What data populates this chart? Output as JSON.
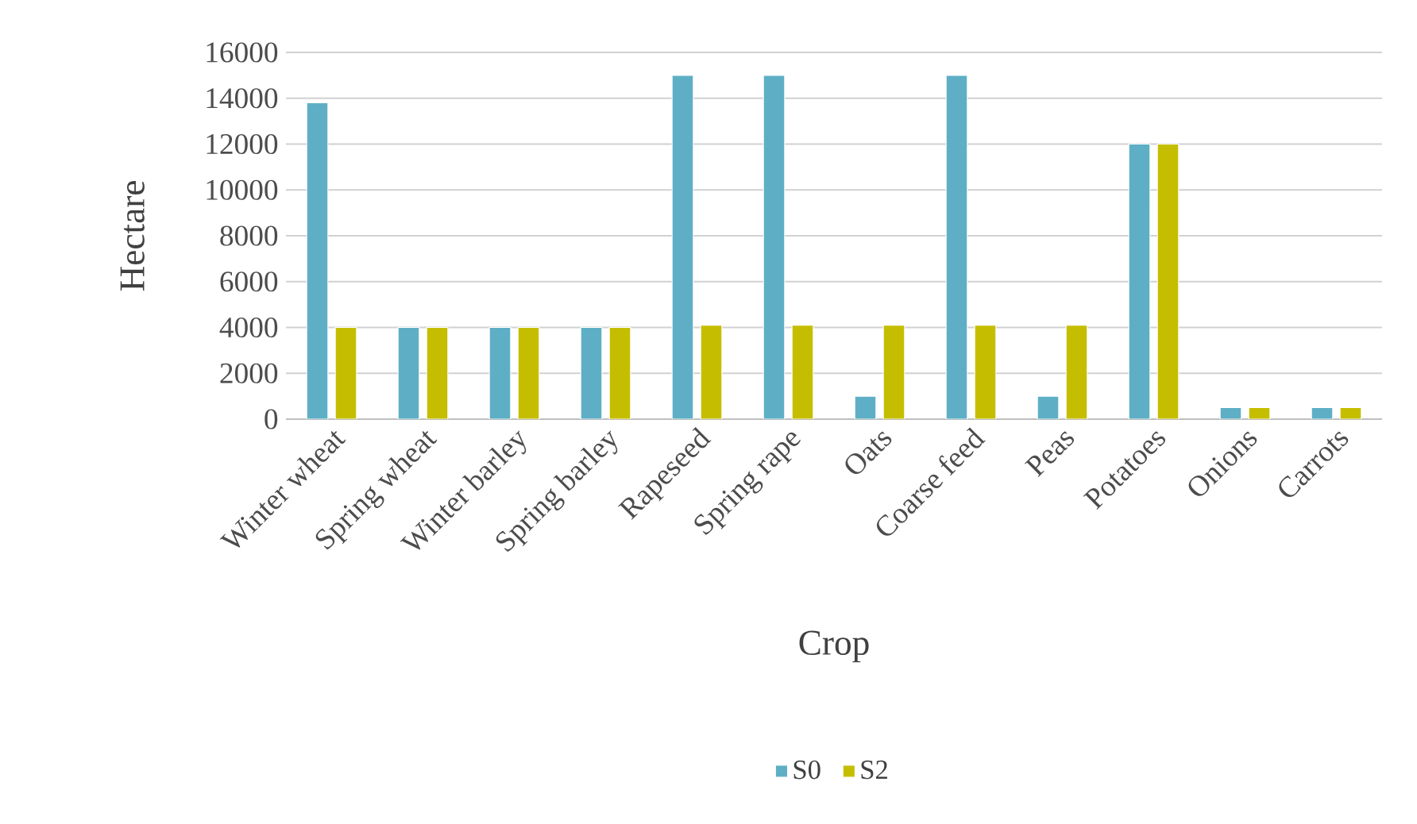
{
  "chart_data": {
    "type": "bar",
    "xlabel": "Crop",
    "ylabel": "Hectare",
    "categories": [
      "Winter wheat",
      "Spring wheat",
      "Winter barley",
      "Spring barley",
      "Rapeseed",
      "Spring rape",
      "Oats",
      "Coarse feed",
      "Peas",
      "Potatoes",
      "Onions",
      "Carrots"
    ],
    "series": [
      {
        "name": "S0",
        "color": "#5eafc6",
        "values": [
          13800,
          4000,
          4000,
          4000,
          15000,
          15000,
          1000,
          15000,
          1000,
          12000,
          500,
          500
        ]
      },
      {
        "name": "S2",
        "color": "#c5be00",
        "values": [
          4000,
          4000,
          4000,
          4000,
          4100,
          4100,
          4100,
          4100,
          4100,
          12000,
          500,
          500
        ]
      }
    ],
    "ylim": [
      0,
      16000
    ],
    "yticks": [
      0,
      2000,
      4000,
      6000,
      8000,
      10000,
      12000,
      14000,
      16000
    ],
    "grid": "y",
    "legend": "bottom"
  }
}
